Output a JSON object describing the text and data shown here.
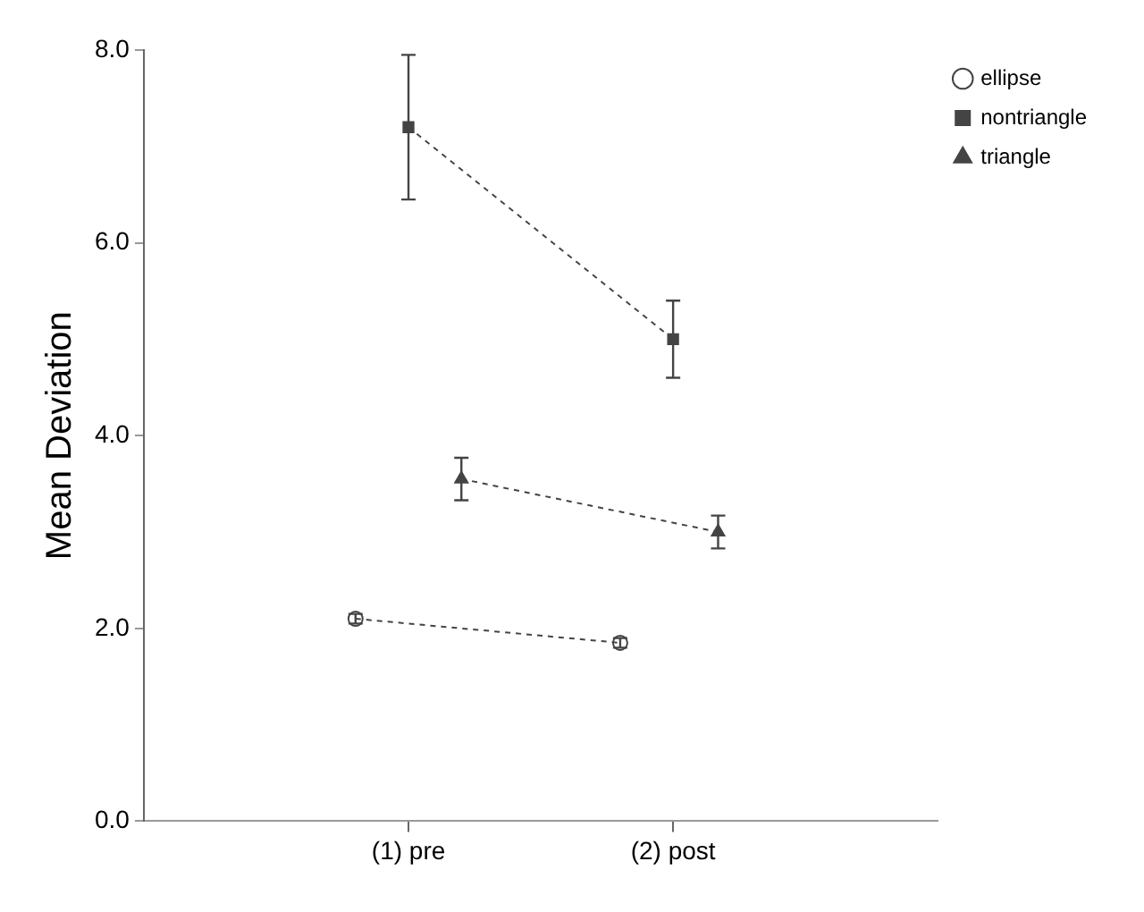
{
  "chart_data": {
    "type": "line",
    "ylabel": "Mean Deviation",
    "xlim": [
      0,
      3
    ],
    "xticks": [
      {
        "value": 1,
        "label": "(1) pre"
      },
      {
        "value": 2,
        "label": "(2) post"
      }
    ],
    "ylim": [
      0,
      8
    ],
    "yticks": [
      {
        "value": 0,
        "label": "0.0"
      },
      {
        "value": 2,
        "label": "2.0"
      },
      {
        "value": 4,
        "label": "4.0"
      },
      {
        "value": 6,
        "label": "6.0"
      },
      {
        "value": 8,
        "label": "8.0"
      }
    ],
    "grid": false,
    "legend": "top right",
    "line_style": "dotted",
    "series": [
      {
        "name": "ellipse",
        "color": "#444444",
        "marker": "circle",
        "x": [
          0.8,
          1.8
        ],
        "values": [
          2.1,
          1.85
        ],
        "errors": [
          0.05,
          0.05
        ]
      },
      {
        "name": "nontriangle",
        "color": "#444444",
        "marker": "square",
        "x": [
          1,
          2
        ],
        "values": [
          7.2,
          5.0
        ],
        "errors": [
          0.75,
          0.4
        ]
      },
      {
        "name": "triangle",
        "color": "#444444",
        "marker": "triangle",
        "x": [
          1.2,
          2.17
        ],
        "values": [
          3.55,
          3.0
        ],
        "errors": [
          0.22,
          0.17
        ]
      }
    ]
  }
}
